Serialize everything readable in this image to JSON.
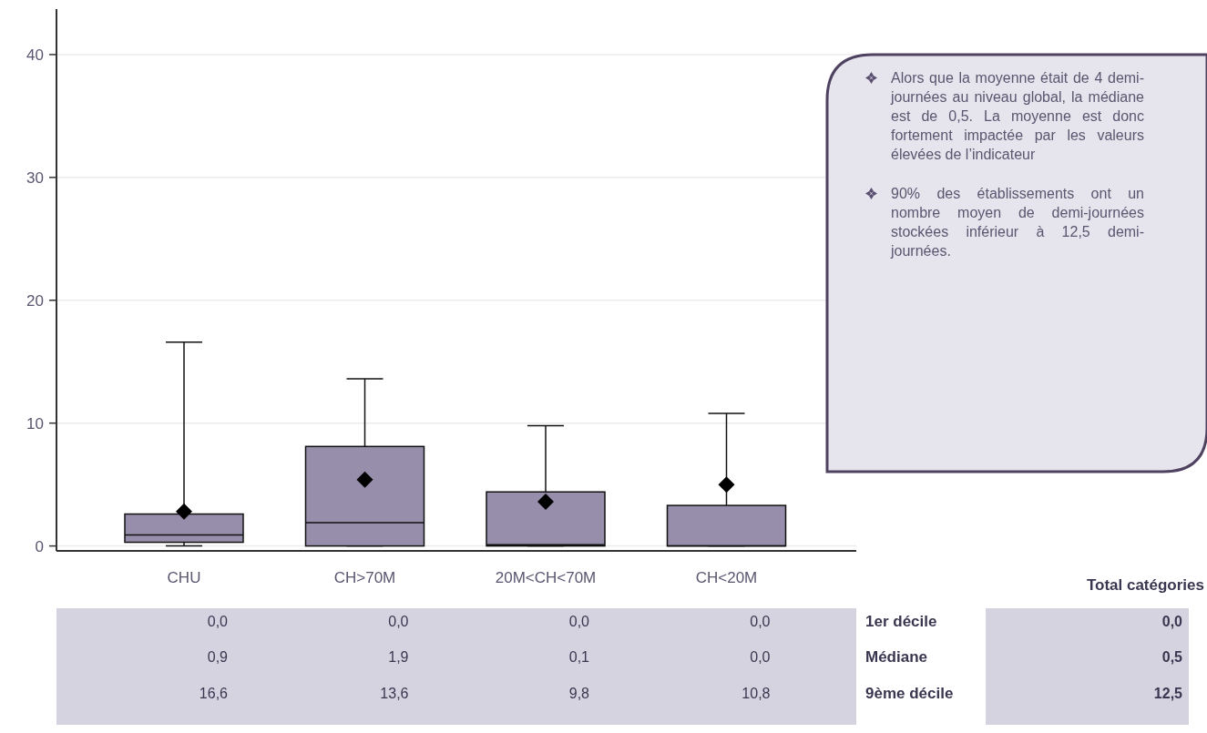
{
  "chart_data": {
    "type": "box",
    "categories": [
      "CHU",
      "CH>70M",
      "20M<CH<70M",
      "CH<20M"
    ],
    "boxes": [
      {
        "low": 0,
        "q1": 0.3,
        "median": 0.9,
        "q3": 2.6,
        "high": 16.6,
        "mean": 2.8
      },
      {
        "low": 0,
        "q1": 0,
        "median": 1.9,
        "q3": 8.1,
        "high": 13.6,
        "mean": 5.4
      },
      {
        "low": 0,
        "q1": 0,
        "median": 0.1,
        "q3": 4.4,
        "high": 9.8,
        "mean": 3.6
      },
      {
        "low": 0,
        "q1": 0,
        "median": 0,
        "q3": 3.3,
        "high": 10.8,
        "mean": 5.0
      }
    ],
    "color": "#968eab",
    "ylim": [
      -0.4,
      43.7
    ],
    "yticks": [
      0,
      10,
      20,
      30,
      40
    ],
    "grid": "y",
    "marker": "diamond",
    "annotations": [
      "Alors que la moyenne était de 4 demi-journées au niveau global, la médiane est de 0,5. La moyenne est donc fortement impactée par les valeurs élevées de l’indicateur",
      "90% des établissements ont un nombre moyen de demi-journées stockées inférieur à 12,5 demi-journées.",
      "Total catégories",
      "1er décile",
      "Médiane",
      "9ème décile",
      "0,0",
      "0,5",
      "12,5",
      "0,0",
      "0,0",
      "0,0",
      "0,0",
      "0,9",
      "1,9",
      "0,1",
      "0,0",
      "16,6",
      "13,6",
      "9,8",
      "10,8"
    ]
  }
}
